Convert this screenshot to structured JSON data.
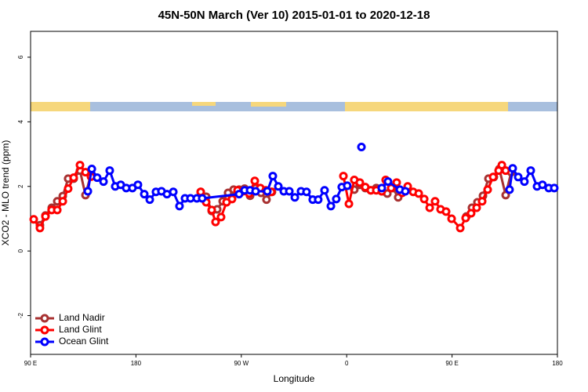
{
  "chart_data": {
    "type": "line",
    "title": "45N-50N March (Ver 10)   2015-01-01 to 2020-12-18",
    "x_label": "Longitude",
    "y_label": "XCO2 - MLO trend (ppm)",
    "xlim": [
      90,
      540
    ],
    "ylim": [
      -3.2,
      6.8
    ],
    "xticks": [
      {
        "value": 90,
        "label": "90 E"
      },
      180,
      {
        "value": 270,
        "label": "90 W"
      },
      {
        "value": 360,
        "label": "0"
      },
      {
        "value": 450,
        "label": "90 E"
      },
      {
        "value": 540,
        "label": "180"
      }
    ],
    "yticks": [
      -2,
      0,
      2,
      4,
      6
    ],
    "legend": "bottom-left",
    "series": [
      {
        "name": "Land Nadir",
        "color": "#a83232",
        "x": [
          98.0,
          102.7,
          108.1,
          112.8,
          117.5,
          122.1,
          126.8,
          132.2,
          136.9,
          141.6,
          null,
          235.3,
          240,
          244.7,
          249.4,
          254.1,
          258.7,
          263.4,
          268.1,
          272.8,
          277.5,
          282.2,
          286.9,
          291.5,
          296.2,
          null,
          366.5,
          371.2,
          375.9,
          380.6,
          385.3,
          390,
          394.7,
          399.4,
          404,
          408.7,
          null,
          462.3,
          467,
          471.7,
          476.4,
          481.1,
          485.7,
          490.4,
          495.8,
          500.5
        ],
        "values": [
          0.8,
          1.1,
          1.34,
          1.54,
          1.7,
          2.24,
          2.24,
          2.49,
          1.73,
          2.39,
          null,
          1.83,
          1.68,
          1.24,
          1.29,
          1.54,
          1.8,
          1.9,
          1.9,
          1.93,
          1.71,
          1.95,
          1.8,
          1.59,
          1.83,
          null,
          1.9,
          2.05,
          1.95,
          1.88,
          1.95,
          1.85,
          1.78,
          1.95,
          1.66,
          1.85,
          null,
          1.07,
          1.34,
          1.51,
          1.71,
          2.24,
          2.29,
          2.54,
          1.73,
          2.44
        ]
      },
      {
        "name": "Land Glint",
        "color": "#ff0000",
        "x": [
          92.7,
          98,
          102.7,
          108,
          112.8,
          117.5,
          122.1,
          126.8,
          132.2,
          136.9,
          141.6,
          null,
          235.3,
          240,
          244.7,
          248,
          252.7,
          257.4,
          262.1,
          266.8,
          271.5,
          276.8,
          281.5,
          286.2,
          290.9,
          295.6,
          null,
          357.2,
          361.9,
          366.5,
          371.2,
          375.9,
          380.6,
          385.3,
          390,
          393.3,
          398,
          402.7,
          407.4,
          412.1,
          416.8,
          421.5,
          426.2,
          430.9,
          435.5,
          440.2,
          444.9,
          449.6,
          457,
          461.6,
          466.3,
          471,
          475.7,
          480.4,
          485.1,
          489.8,
          492.5,
          495.8
        ],
        "values": [
          0.98,
          0.71,
          1.07,
          1.27,
          1.27,
          1.54,
          1.93,
          2.27,
          2.66,
          2.44,
          2.3,
          null,
          1.83,
          1.51,
          1.27,
          0.9,
          1.05,
          1.51,
          1.61,
          1.88,
          1.85,
          1.78,
          2.17,
          1.95,
          1.88,
          1.83,
          null,
          2.32,
          1.46,
          2.2,
          2.12,
          1.98,
          1.88,
          1.88,
          1.85,
          2.2,
          1.95,
          2.12,
          1.8,
          2.0,
          1.83,
          1.78,
          1.61,
          1.34,
          1.54,
          1.29,
          1.22,
          1.0,
          0.71,
          1.02,
          1.17,
          1.34,
          1.54,
          1.9,
          2.29,
          2.49,
          2.66,
          2.49
        ]
      },
      {
        "name": "Ocean Glint",
        "color": "#0000ff",
        "x": [
          138.9,
          142.3,
          146.9,
          152.3,
          157.6,
          162.3,
          167,
          171.7,
          177,
          181.7,
          187.1,
          191.8,
          197.1,
          201.8,
          206.5,
          211.9,
          217.2,
          221.9,
          226.6,
          232,
          236.6,
          268.1,
          272.8,
          277.5,
          282.2,
          292.2,
          296.9,
          301.6,
          306.3,
          311,
          315.7,
          321,
          325.7,
          331,
          335.7,
          341.1,
          346.5,
          351.1,
          355.8,
          360.5,
          null,
          372.6,
          null,
          390,
          395.3,
          405.4,
          410.1,
          null,
          499.1,
          501.8,
          506.5,
          511.8,
          517.2,
          522.6,
          527.2,
          532.6,
          537.3
        ],
        "values": [
          1.85,
          2.54,
          2.27,
          2.15,
          2.49,
          2.0,
          2.05,
          1.95,
          1.95,
          2.05,
          1.76,
          1.59,
          1.83,
          1.85,
          1.76,
          1.83,
          1.39,
          1.63,
          1.63,
          1.63,
          1.63,
          1.76,
          1.88,
          1.88,
          1.85,
          1.85,
          2.32,
          2.0,
          1.85,
          1.85,
          1.66,
          1.85,
          1.83,
          1.59,
          1.59,
          1.88,
          1.39,
          1.61,
          1.98,
          2.02,
          null,
          3.22,
          null,
          1.95,
          2.15,
          1.9,
          1.85,
          null,
          1.9,
          2.56,
          2.29,
          2.15,
          2.49,
          2.0,
          2.05,
          1.95,
          1.95
        ]
      }
    ]
  }
}
